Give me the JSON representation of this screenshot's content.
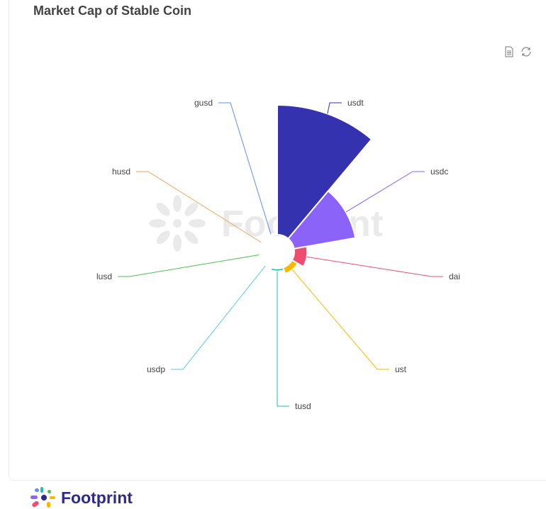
{
  "title": "Market Cap of Stable Coin",
  "toolbar": {
    "data_view_icon": "document-icon",
    "restore_icon": "refresh-icon"
  },
  "watermark": "Footprint",
  "footer": {
    "brand": "Footprint"
  },
  "chart_data": {
    "type": "pie",
    "rose_type": "radius",
    "categories": [
      "usdt",
      "usdc",
      "dai",
      "ust",
      "tusd",
      "usdp",
      "lusd",
      "husd",
      "gusd"
    ],
    "values": [
      100,
      48,
      10,
      5,
      2,
      1,
      0.5,
      0.3,
      0.2
    ],
    "colors": [
      "#3532b0",
      "#8b63f9",
      "#ef4d6f",
      "#f6b900",
      "#22c3a6",
      "#5dc9e6",
      "#4dbf4f",
      "#f2a35a",
      "#5c8ff5"
    ],
    "legend": "none"
  }
}
